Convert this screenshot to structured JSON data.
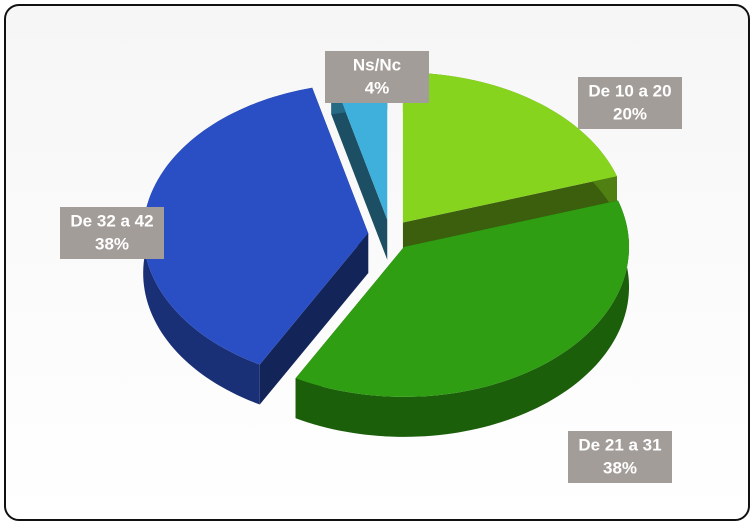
{
  "chart_data": {
    "type": "pie",
    "categories": [
      "De 10 a 20",
      "De 21 a 31",
      "De 32 a 42",
      "Ns/Nc"
    ],
    "values": [
      20,
      38,
      38,
      4
    ],
    "value_labels": [
      "20%",
      "38%",
      "38%",
      "4%"
    ],
    "colors": [
      "#86d41e",
      "#2f9e12",
      "#2a4fc4",
      "#3fb0dc"
    ]
  }
}
